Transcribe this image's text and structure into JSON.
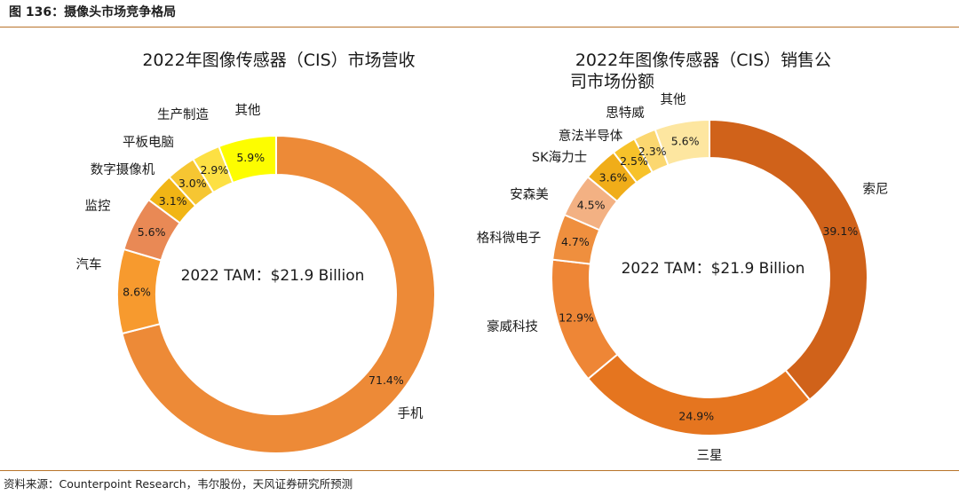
{
  "figure_title": "图 136：摄像头市场竞争格局",
  "source": "资料来源：Counterpoint Research，韦尔股份，天风证券研究所预测",
  "chart_data": [
    {
      "type": "pie",
      "title": "2022年图像传感器（CIS）市场营收",
      "center_text": "2022 TAM：$21.9 Billion",
      "categories": [
        "手机",
        "汽车",
        "监控",
        "数字摄像机",
        "平板电脑",
        "生产制造",
        "其他"
      ],
      "values": [
        71.4,
        8.6,
        5.6,
        3.1,
        3.0,
        2.9,
        5.9
      ],
      "labels": [
        "71.4%",
        "8.6%",
        "5.6%",
        "3.1%",
        "3.0%",
        "2.9%",
        "5.9%"
      ],
      "colors": [
        "#ed8a37",
        "#f79a2e",
        "#e98955",
        "#f1b515",
        "#f6c632",
        "#fde043",
        "#fdfd00"
      ],
      "unit": "%"
    },
    {
      "type": "pie",
      "title": "2022年图像传感器（CIS）销售公司市场份额",
      "title_lines": [
        "2022年图像传感器（CIS）销售公",
        "司市场份额"
      ],
      "center_text": "2022 TAM：$21.9 Billion",
      "categories": [
        "索尼",
        "三星",
        "豪威科技",
        "格科微电子",
        "安森美",
        "SK海力士",
        "意法半导体",
        "思特威",
        "其他"
      ],
      "values": [
        39.1,
        24.9,
        12.9,
        4.7,
        4.5,
        3.6,
        2.5,
        2.3,
        5.6
      ],
      "labels": [
        "39.1%",
        "24.9%",
        "12.9%",
        "4.7%",
        "4.5%",
        "3.6%",
        "2.5%",
        "2.3%",
        "5.6%"
      ],
      "colors": [
        "#d0621a",
        "#e5751f",
        "#ee8636",
        "#ef8f3e",
        "#f3b183",
        "#f0ad19",
        "#f7c22a",
        "#fbd770",
        "#fde6a0"
      ],
      "unit": "%"
    }
  ]
}
